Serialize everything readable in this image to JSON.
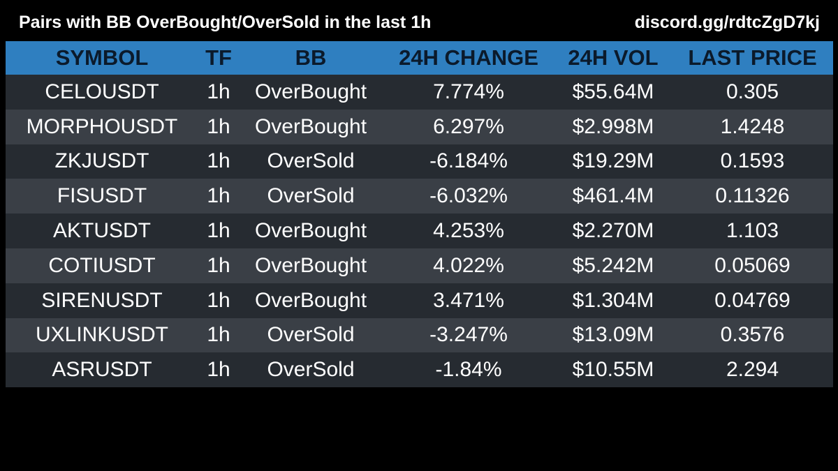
{
  "header": {
    "title": "Pairs with BB OverBought/OverSold in the last 1h",
    "discord": "discord.gg/rdtcZgD7kj"
  },
  "table": {
    "columns": [
      "SYMBOL",
      "TF",
      "BB",
      "24H CHANGE",
      "24H VOL",
      "LAST PRICE"
    ],
    "rows": [
      {
        "symbol": "CELOUSDT",
        "tf": "1h",
        "bb": "OverBought",
        "change": "7.774%",
        "vol": "$55.64M",
        "price": "0.305"
      },
      {
        "symbol": "MORPHOUSDT",
        "tf": "1h",
        "bb": "OverBought",
        "change": "6.297%",
        "vol": "$2.998M",
        "price": "1.4248"
      },
      {
        "symbol": "ZKJUSDT",
        "tf": "1h",
        "bb": "OverSold",
        "change": "-6.184%",
        "vol": "$19.29M",
        "price": "0.1593"
      },
      {
        "symbol": "FISUSDT",
        "tf": "1h",
        "bb": "OverSold",
        "change": "-6.032%",
        "vol": "$461.4M",
        "price": "0.11326"
      },
      {
        "symbol": "AKTUSDT",
        "tf": "1h",
        "bb": "OverBought",
        "change": "4.253%",
        "vol": "$2.270M",
        "price": "1.103"
      },
      {
        "symbol": "COTIUSDT",
        "tf": "1h",
        "bb": "OverBought",
        "change": "4.022%",
        "vol": "$5.242M",
        "price": "0.05069"
      },
      {
        "symbol": "SIRENUSDT",
        "tf": "1h",
        "bb": "OverBought",
        "change": "3.471%",
        "vol": "$1.304M",
        "price": "0.04769"
      },
      {
        "symbol": "UXLINKUSDT",
        "tf": "1h",
        "bb": "OverSold",
        "change": "-3.247%",
        "vol": "$13.09M",
        "price": "0.3576"
      },
      {
        "symbol": "ASRUSDT",
        "tf": "1h",
        "bb": "OverSold",
        "change": "-1.84%",
        "vol": "$10.55M",
        "price": "2.294"
      }
    ]
  },
  "colors": {
    "background": "#000000",
    "header_row": "#2f7fc0",
    "header_text": "#0b1a2b",
    "row_dark": "#262b31",
    "row_light": "#3a3f46",
    "cell_text": "#ffffff"
  }
}
